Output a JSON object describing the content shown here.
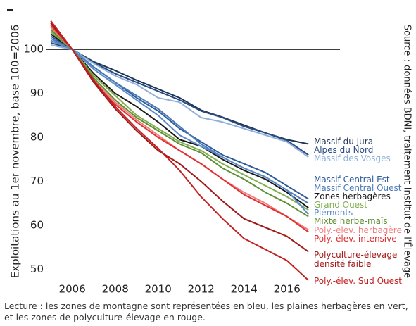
{
  "chart_data": {
    "type": "line",
    "y_label": "Exploitations au 1er novembre, base 100=2006",
    "source": "Source : données BDNI, traitement Institut de l'Élevage",
    "note": "Lecture : les zones de montagne sont représentées en bleu, les plaines herbagères en vert, et les zones de polyculture-élevage en rouge.",
    "x": [
      2005,
      2006,
      2007,
      2008,
      2009,
      2010,
      2011,
      2012,
      2013,
      2014,
      2015,
      2016,
      2017
    ],
    "xlim": [
      2004.6,
      2018.6
    ],
    "xticks": [
      2006,
      2008,
      2010,
      2012,
      2014,
      2016
    ],
    "ylim": [
      48,
      109
    ],
    "yticks": [
      50,
      60,
      70,
      80,
      90,
      100
    ],
    "hline": 100,
    "grid": false,
    "series": [
      {
        "name": "Massif du Jura",
        "color": "#1f3556",
        "values": [
          102,
          100,
          97.2,
          95.2,
          93,
          91,
          89,
          86.2,
          84.6,
          82.8,
          81,
          79.5,
          78.5
        ]
      },
      {
        "name": "Alpes du Nord",
        "color": "#2a4a80",
        "values": [
          101.5,
          100,
          97,
          94.5,
          92.5,
          90.5,
          88.5,
          86,
          84.5,
          82.5,
          81,
          79.3,
          76
        ]
      },
      {
        "name": "Massif des Vosges",
        "color": "#8fb0d8",
        "values": [
          101,
          100,
          96.8,
          94,
          92,
          89,
          88,
          84.5,
          83.5,
          82,
          80.5,
          79,
          75.5
        ]
      },
      {
        "name": "Massif Central Est",
        "color": "#2f5b9a",
        "values": [
          103,
          100,
          96,
          92.5,
          89,
          86,
          82,
          79,
          76,
          74,
          72,
          69,
          66
        ]
      },
      {
        "name": "Massif Central Ouest",
        "color": "#4a7ab8",
        "values": [
          102.5,
          100,
          96,
          92.5,
          89.5,
          86.5,
          82.5,
          78.5,
          75.5,
          73,
          71,
          68,
          65
        ]
      },
      {
        "name": "Zones herbagères",
        "color": "#1a1a1a",
        "values": [
          103.5,
          100,
          94.5,
          90,
          87,
          83.5,
          79.5,
          78,
          75,
          72.5,
          70.5,
          67.5,
          64
        ]
      },
      {
        "name": "Grand Ouest",
        "color": "#7fae4e",
        "values": [
          104,
          100,
          94,
          89.5,
          85,
          82,
          79,
          77,
          74,
          71.5,
          69,
          66.5,
          63.5
        ]
      },
      {
        "name": "Piémonts",
        "color": "#5a8ac8",
        "values": [
          102,
          100,
          95.5,
          92,
          88.5,
          85,
          80.5,
          78,
          75.5,
          73,
          71,
          68,
          62.5
        ]
      },
      {
        "name": "Mixte herbe-maïs",
        "color": "#5e8f32",
        "values": [
          104.5,
          100,
          93.5,
          88.5,
          84.5,
          81.5,
          78.5,
          76.5,
          73,
          70.5,
          67.5,
          65,
          62
        ]
      },
      {
        "name": "Poly.-élev. herbagère",
        "color": "#f08080",
        "values": [
          105,
          100,
          93,
          88,
          84,
          80.5,
          77,
          74,
          70.5,
          67.5,
          65,
          62,
          59
        ]
      },
      {
        "name": "Poly.-élev. intensive",
        "color": "#e03030",
        "values": [
          105.5,
          100,
          92.5,
          87.5,
          83.5,
          80,
          77,
          74,
          70.5,
          67,
          64.5,
          62,
          58.5
        ]
      },
      {
        "name": "Polyculture-élevage densité faible",
        "color": "#a01818",
        "values": [
          106,
          100,
          92.5,
          86.5,
          81.5,
          77,
          74,
          70,
          65.5,
          61.5,
          59.5,
          57.5,
          54
        ]
      },
      {
        "name": "Poly.-élev. Sud Ouest",
        "color": "#c42020",
        "values": [
          106.5,
          100,
          93,
          87,
          82,
          77.5,
          72.5,
          66.5,
          61.5,
          57,
          54.5,
          52,
          47.5
        ]
      }
    ]
  }
}
